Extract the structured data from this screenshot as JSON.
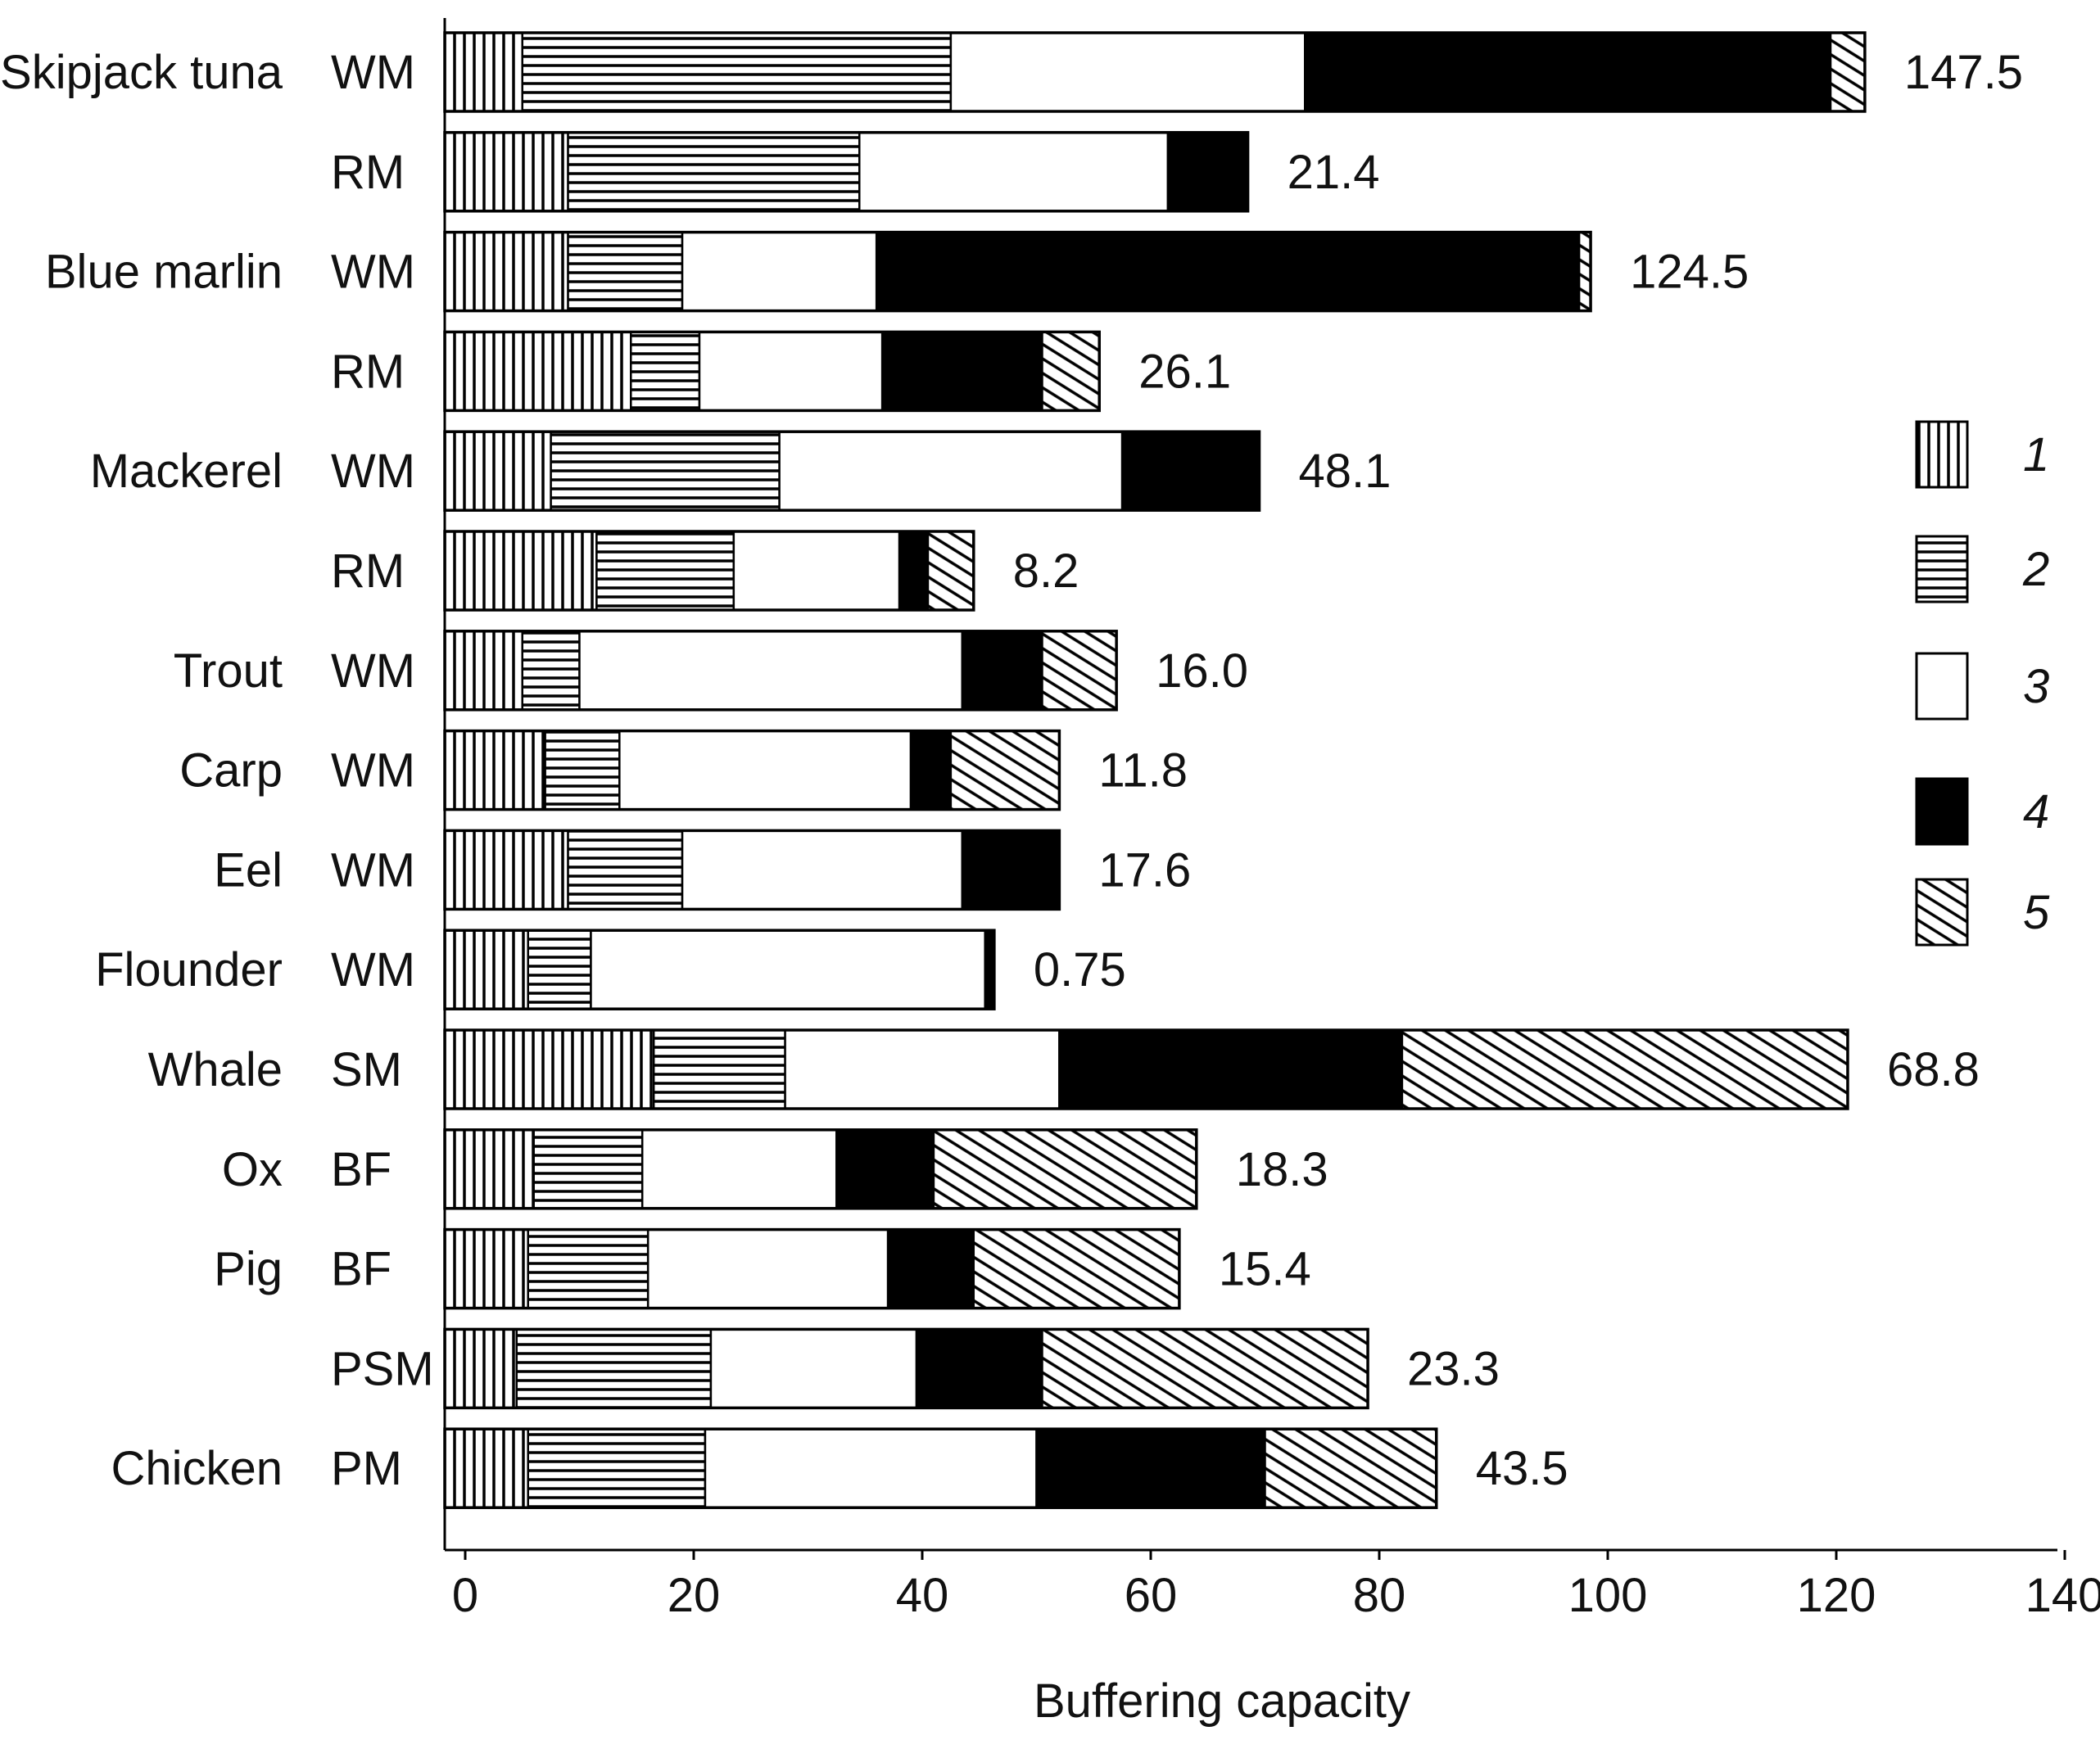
{
  "chart_data": {
    "type": "bar",
    "orientation": "horizontal",
    "stacked": true,
    "title": "",
    "xlabel": "Buffering capacity",
    "ylabel": "",
    "xlim": [
      -2,
      140
    ],
    "xticks": [
      0,
      20,
      40,
      60,
      80,
      100,
      120,
      140
    ],
    "xtick_labels": [
      "0",
      "20",
      "40",
      "60",
      "80",
      "100",
      "120",
      "140"
    ],
    "legend": {
      "position": "right",
      "entries": [
        {
          "key": "1",
          "pattern": "vertical-lines"
        },
        {
          "key": "2",
          "pattern": "horizontal-lines"
        },
        {
          "key": "3",
          "pattern": "white"
        },
        {
          "key": "4",
          "pattern": "black"
        },
        {
          "key": "5",
          "pattern": "diagonal-hatch"
        }
      ]
    },
    "bars": [
      {
        "species": "Skipjack tuna",
        "tissue": "WM",
        "segments": [
          5,
          37.5,
          31,
          46,
          3
        ],
        "end_label": "147.5"
      },
      {
        "species": "",
        "tissue": "RM",
        "segments": [
          9,
          25.5,
          27,
          7
        ],
        "end_label": "21.4"
      },
      {
        "species": "Blue marlin",
        "tissue": "WM",
        "segments": [
          9,
          10,
          17,
          61.5,
          1
        ],
        "end_label": "124.5"
      },
      {
        "species": "",
        "tissue": "RM",
        "segments": [
          14.5,
          6,
          16,
          14,
          5
        ],
        "end_label": "26.1"
      },
      {
        "species": "Mackerel",
        "tissue": "WM",
        "segments": [
          7.5,
          20,
          30,
          12
        ],
        "end_label": "48.1"
      },
      {
        "species": "",
        "tissue": "RM",
        "segments": [
          11.5,
          12,
          14.5,
          2.5,
          4
        ],
        "end_label": "8.2"
      },
      {
        "species": "Trout",
        "tissue": "WM",
        "segments": [
          5,
          5,
          33.5,
          7,
          6.5
        ],
        "end_label": "16.0"
      },
      {
        "species": "Carp",
        "tissue": "WM",
        "segments": [
          7,
          6.5,
          25.5,
          3.5,
          9.5
        ],
        "end_label": "11.8"
      },
      {
        "species": "Eel",
        "tissue": "WM",
        "segments": [
          9,
          10,
          24.5,
          8.5
        ],
        "end_label": "17.6"
      },
      {
        "species": "Flounder",
        "tissue": "WM",
        "segments": [
          5.5,
          5.5,
          34.5,
          0.8
        ],
        "end_label": "0.75"
      },
      {
        "species": "Whale",
        "tissue": "SM",
        "segments": [
          16.5,
          11.5,
          24,
          30,
          39
        ],
        "end_label": "68.8"
      },
      {
        "species": "Ox",
        "tissue": "BF",
        "segments": [
          6,
          9.5,
          17,
          8.5,
          23
        ],
        "end_label": "18.3"
      },
      {
        "species": "Pig",
        "tissue": "BF",
        "segments": [
          5.5,
          10.5,
          21,
          7.5,
          18
        ],
        "end_label": "15.4"
      },
      {
        "species": "",
        "tissue": "PSM",
        "segments": [
          4.5,
          17,
          18,
          11,
          28.5
        ],
        "end_label": "23.3"
      },
      {
        "species": "Chicken",
        "tissue": "PM",
        "segments": [
          5.5,
          15.5,
          29,
          20,
          15
        ],
        "end_label": "43.5"
      }
    ]
  }
}
